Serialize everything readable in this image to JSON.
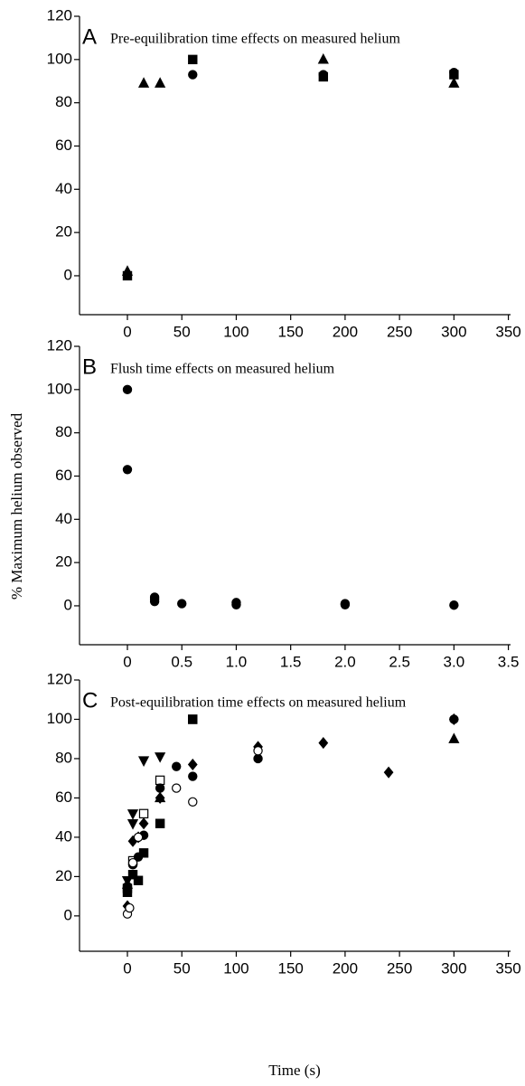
{
  "chart_data": [
    {
      "type": "scatter",
      "panel_label": "A",
      "title": "Pre-equilibration time effects on measured helium",
      "xlim": [
        -44,
        352
      ],
      "ylim": [
        -18,
        120
      ],
      "xticks": [
        0,
        50,
        100,
        150,
        200,
        250,
        300,
        350
      ],
      "yticks": [
        0,
        20,
        40,
        60,
        80,
        100,
        120
      ],
      "series": [
        {
          "marker": "triangle",
          "color": "#000000",
          "x": [
            0,
            15,
            30,
            180,
            300
          ],
          "values": [
            2,
            89,
            89,
            100,
            89
          ]
        },
        {
          "marker": "square",
          "color": "#000000",
          "x": [
            0,
            60,
            180,
            300
          ],
          "values": [
            0,
            100,
            92,
            93
          ]
        },
        {
          "marker": "circle",
          "color": "#000000",
          "x": [
            0,
            60,
            180,
            300
          ],
          "values": [
            0.5,
            93,
            93,
            94
          ]
        }
      ]
    },
    {
      "type": "scatter",
      "panel_label": "B",
      "title": "Flush time effects on measured helium",
      "ylabel": "% Maximum helium observed",
      "xlim": [
        -0.44,
        3.52
      ],
      "ylim": [
        -18,
        120
      ],
      "xticks": [
        0,
        0.5,
        {
          "value": 1,
          "label": "1.0"
        },
        1.5,
        {
          "value": 2,
          "label": "2.0"
        },
        2.5,
        {
          "value": 3,
          "label": "3.0"
        },
        3.5
      ],
      "yticks": [
        0,
        20,
        40,
        60,
        80,
        100,
        120
      ],
      "series": [
        {
          "marker": "circle",
          "color": "#000000",
          "x": [
            0,
            0,
            0.25,
            0.25,
            0.25,
            0.5,
            1,
            1,
            2,
            2,
            3
          ],
          "values": [
            100,
            63,
            4,
            3,
            2,
            1,
            1.5,
            0.5,
            0.5,
            1,
            0.3
          ]
        }
      ]
    },
    {
      "type": "scatter",
      "panel_label": "C",
      "title": "Post-equilibration time effects on measured helium",
      "xlabel": "Time (s)",
      "xlim": [
        -44,
        352
      ],
      "ylim": [
        -18,
        120
      ],
      "xticks": [
        0,
        50,
        100,
        150,
        200,
        250,
        300,
        350
      ],
      "yticks": [
        0,
        20,
        40,
        60,
        80,
        100,
        120
      ],
      "series": [
        {
          "marker": "triangle-down",
          "color": "#000000",
          "x": [
            0,
            5,
            5,
            15,
            30
          ],
          "values": [
            18,
            47,
            52,
            79,
            81
          ]
        },
        {
          "marker": "square-open",
          "color": "#000000",
          "x": [
            0,
            5,
            15,
            30,
            60
          ],
          "values": [
            14,
            28,
            52,
            69,
            100
          ]
        },
        {
          "marker": "square",
          "color": "#000000",
          "x": [
            0,
            5,
            10,
            15,
            30,
            60
          ],
          "values": [
            12,
            21,
            18,
            32,
            47,
            100
          ]
        },
        {
          "marker": "diamond",
          "color": "#000000",
          "x": [
            0,
            5,
            10,
            15,
            30,
            60,
            120,
            180,
            240,
            300
          ],
          "values": [
            5,
            38,
            40,
            47,
            60,
            77,
            86,
            88,
            73,
            100
          ]
        },
        {
          "marker": "circle",
          "color": "#000000",
          "x": [
            0,
            5,
            10,
            15,
            30,
            45,
            60,
            120,
            300
          ],
          "values": [
            15,
            26,
            30,
            41,
            65,
            76,
            71,
            80,
            100
          ]
        },
        {
          "marker": "circle-open",
          "color": "#000000",
          "x": [
            0,
            2,
            5,
            10,
            45,
            60,
            120
          ],
          "values": [
            1,
            4,
            27,
            40,
            65,
            58,
            84
          ]
        },
        {
          "marker": "triangle",
          "color": "#000000",
          "x": [
            0,
            30,
            300
          ],
          "values": [
            16,
            60,
            90
          ]
        }
      ]
    }
  ]
}
